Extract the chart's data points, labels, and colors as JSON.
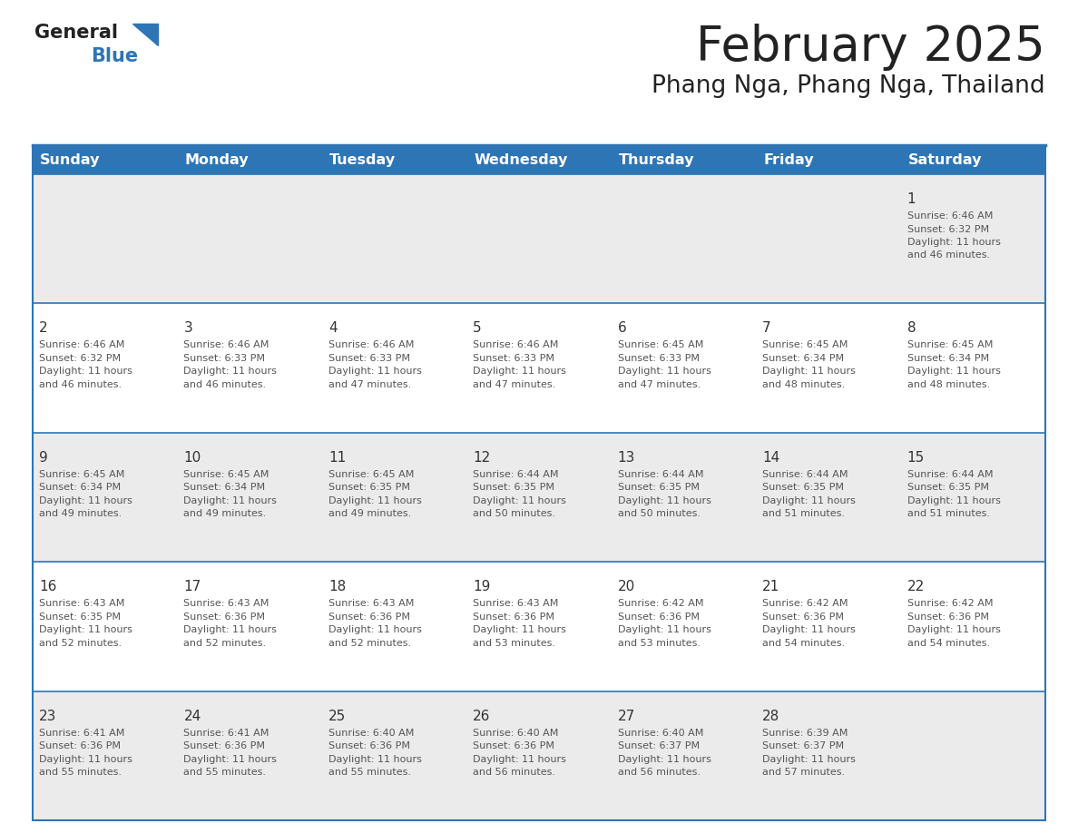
{
  "title": "February 2025",
  "subtitle": "Phang Nga, Phang Nga, Thailand",
  "header_bg_color": "#2E75B6",
  "header_text_color": "#FFFFFF",
  "weekdays": [
    "Sunday",
    "Monday",
    "Tuesday",
    "Wednesday",
    "Thursday",
    "Friday",
    "Saturday"
  ],
  "bg_color": "#FFFFFF",
  "row0_color": "#EBEBEB",
  "row1_color": "#FFFFFF",
  "cell_border_color": "#2E75B6",
  "day_number_color": "#333333",
  "day_info_color": "#555555",
  "title_color": "#222222",
  "subtitle_color": "#222222",
  "logo_general_color": "#222222",
  "logo_blue_color": "#2E75B6",
  "calendar": [
    [
      null,
      null,
      null,
      null,
      null,
      null,
      1
    ],
    [
      2,
      3,
      4,
      5,
      6,
      7,
      8
    ],
    [
      9,
      10,
      11,
      12,
      13,
      14,
      15
    ],
    [
      16,
      17,
      18,
      19,
      20,
      21,
      22
    ],
    [
      23,
      24,
      25,
      26,
      27,
      28,
      null
    ]
  ],
  "day_data": {
    "1": {
      "sunrise": "6:46 AM",
      "sunset": "6:32 PM",
      "daylight_hours": 11,
      "daylight_minutes": 46
    },
    "2": {
      "sunrise": "6:46 AM",
      "sunset": "6:32 PM",
      "daylight_hours": 11,
      "daylight_minutes": 46
    },
    "3": {
      "sunrise": "6:46 AM",
      "sunset": "6:33 PM",
      "daylight_hours": 11,
      "daylight_minutes": 46
    },
    "4": {
      "sunrise": "6:46 AM",
      "sunset": "6:33 PM",
      "daylight_hours": 11,
      "daylight_minutes": 47
    },
    "5": {
      "sunrise": "6:46 AM",
      "sunset": "6:33 PM",
      "daylight_hours": 11,
      "daylight_minutes": 47
    },
    "6": {
      "sunrise": "6:45 AM",
      "sunset": "6:33 PM",
      "daylight_hours": 11,
      "daylight_minutes": 47
    },
    "7": {
      "sunrise": "6:45 AM",
      "sunset": "6:34 PM",
      "daylight_hours": 11,
      "daylight_minutes": 48
    },
    "8": {
      "sunrise": "6:45 AM",
      "sunset": "6:34 PM",
      "daylight_hours": 11,
      "daylight_minutes": 48
    },
    "9": {
      "sunrise": "6:45 AM",
      "sunset": "6:34 PM",
      "daylight_hours": 11,
      "daylight_minutes": 49
    },
    "10": {
      "sunrise": "6:45 AM",
      "sunset": "6:34 PM",
      "daylight_hours": 11,
      "daylight_minutes": 49
    },
    "11": {
      "sunrise": "6:45 AM",
      "sunset": "6:35 PM",
      "daylight_hours": 11,
      "daylight_minutes": 49
    },
    "12": {
      "sunrise": "6:44 AM",
      "sunset": "6:35 PM",
      "daylight_hours": 11,
      "daylight_minutes": 50
    },
    "13": {
      "sunrise": "6:44 AM",
      "sunset": "6:35 PM",
      "daylight_hours": 11,
      "daylight_minutes": 50
    },
    "14": {
      "sunrise": "6:44 AM",
      "sunset": "6:35 PM",
      "daylight_hours": 11,
      "daylight_minutes": 51
    },
    "15": {
      "sunrise": "6:44 AM",
      "sunset": "6:35 PM",
      "daylight_hours": 11,
      "daylight_minutes": 51
    },
    "16": {
      "sunrise": "6:43 AM",
      "sunset": "6:35 PM",
      "daylight_hours": 11,
      "daylight_minutes": 52
    },
    "17": {
      "sunrise": "6:43 AM",
      "sunset": "6:36 PM",
      "daylight_hours": 11,
      "daylight_minutes": 52
    },
    "18": {
      "sunrise": "6:43 AM",
      "sunset": "6:36 PM",
      "daylight_hours": 11,
      "daylight_minutes": 52
    },
    "19": {
      "sunrise": "6:43 AM",
      "sunset": "6:36 PM",
      "daylight_hours": 11,
      "daylight_minutes": 53
    },
    "20": {
      "sunrise": "6:42 AM",
      "sunset": "6:36 PM",
      "daylight_hours": 11,
      "daylight_minutes": 53
    },
    "21": {
      "sunrise": "6:42 AM",
      "sunset": "6:36 PM",
      "daylight_hours": 11,
      "daylight_minutes": 54
    },
    "22": {
      "sunrise": "6:42 AM",
      "sunset": "6:36 PM",
      "daylight_hours": 11,
      "daylight_minutes": 54
    },
    "23": {
      "sunrise": "6:41 AM",
      "sunset": "6:36 PM",
      "daylight_hours": 11,
      "daylight_minutes": 55
    },
    "24": {
      "sunrise": "6:41 AM",
      "sunset": "6:36 PM",
      "daylight_hours": 11,
      "daylight_minutes": 55
    },
    "25": {
      "sunrise": "6:40 AM",
      "sunset": "6:36 PM",
      "daylight_hours": 11,
      "daylight_minutes": 55
    },
    "26": {
      "sunrise": "6:40 AM",
      "sunset": "6:36 PM",
      "daylight_hours": 11,
      "daylight_minutes": 56
    },
    "27": {
      "sunrise": "6:40 AM",
      "sunset": "6:37 PM",
      "daylight_hours": 11,
      "daylight_minutes": 56
    },
    "28": {
      "sunrise": "6:39 AM",
      "sunset": "6:37 PM",
      "daylight_hours": 11,
      "daylight_minutes": 57
    }
  }
}
